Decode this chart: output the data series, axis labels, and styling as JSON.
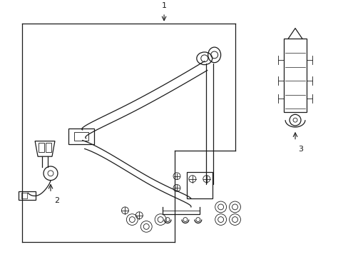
{
  "bg_color": "#ffffff",
  "line_color": "#1a1a1a",
  "fig_width": 4.89,
  "fig_height": 3.6,
  "dpi": 100,
  "label_1": "1",
  "label_2": "2",
  "label_3": "3"
}
